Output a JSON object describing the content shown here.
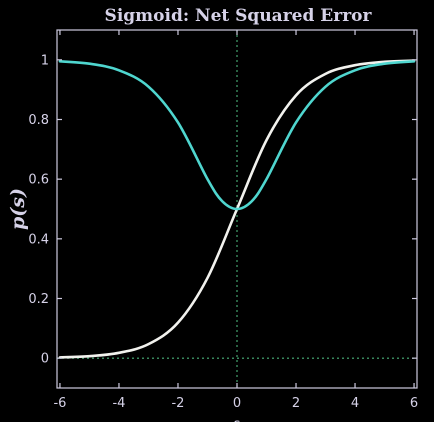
{
  "chart_data": {
    "type": "line",
    "title": "Sigmoid: Net Squared Error",
    "xlabel": "s",
    "ylabel": "p(s)",
    "xlim": [
      -6.1,
      6.1
    ],
    "ylim": [
      -0.1,
      1.1
    ],
    "xticks": [
      -6,
      -4,
      -2,
      0,
      2,
      4,
      6
    ],
    "yticks": [
      0,
      0.2,
      0.4,
      0.6,
      0.8,
      1
    ],
    "ytick_labels": [
      "0",
      "0.2",
      "0.4",
      "0.6",
      "0.8",
      "1"
    ],
    "grid": false,
    "reference_lines": [
      {
        "orientation": "vertical",
        "value": 0,
        "style": "dotted",
        "color": "#4bb27a"
      },
      {
        "orientation": "horizontal",
        "value": 0,
        "style": "dotted",
        "color": "#4bb27a"
      }
    ],
    "series": [
      {
        "color": "#f2f2ee",
        "x": [
          -6,
          -5,
          -4,
          -3,
          -2,
          -1,
          0,
          1,
          2,
          3,
          4,
          5,
          6
        ],
        "y": [
          0.0025,
          0.0067,
          0.018,
          0.047,
          0.119,
          0.269,
          0.5,
          0.731,
          0.881,
          0.953,
          0.982,
          0.9933,
          0.9975
        ]
      },
      {
        "color": "#4fd6cf",
        "x": [
          -6,
          -5,
          -4,
          -3,
          -2,
          -1,
          -0.5,
          0,
          0.5,
          1,
          2,
          3,
          4,
          5,
          6
        ],
        "y": [
          0.995,
          0.987,
          0.965,
          0.91,
          0.79,
          0.6,
          0.526,
          0.5,
          0.526,
          0.6,
          0.79,
          0.91,
          0.965,
          0.987,
          0.995
        ]
      }
    ]
  }
}
